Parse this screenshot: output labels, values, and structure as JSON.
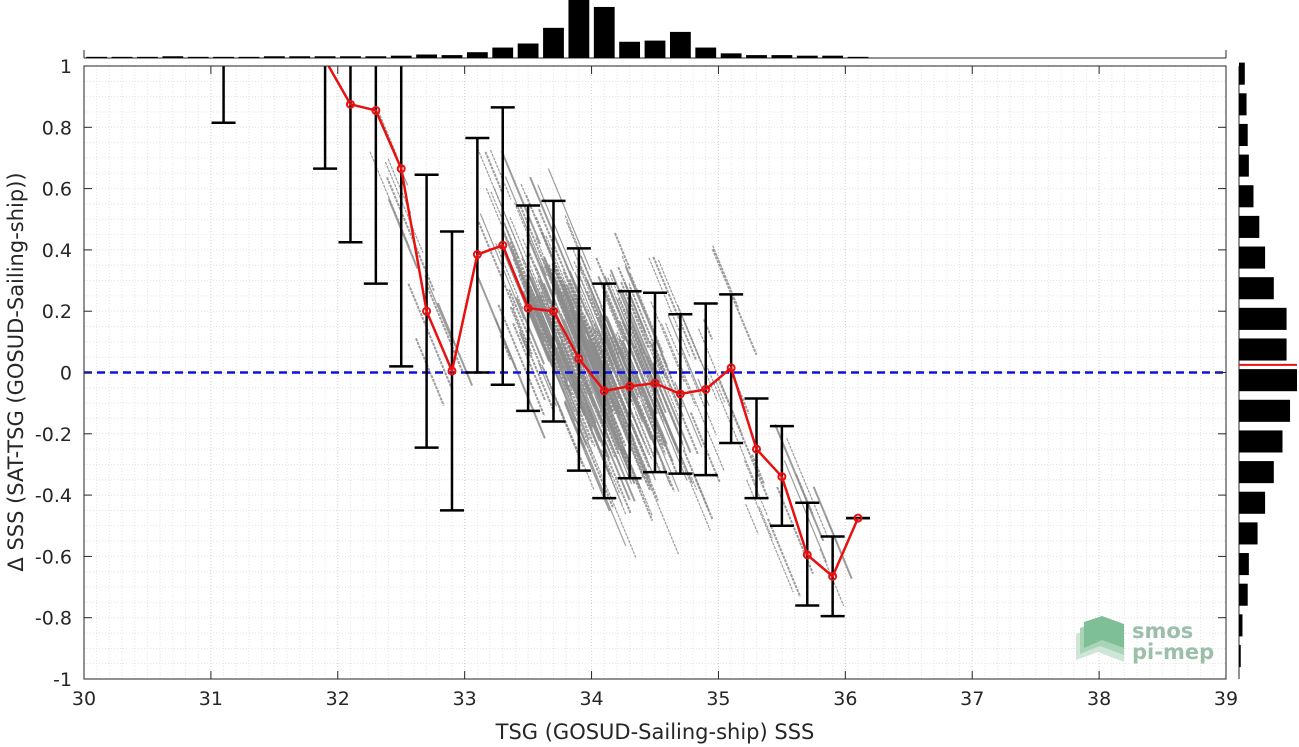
{
  "chart_data": {
    "type": "scatter",
    "title": "",
    "xlabel": "TSG (GOSUD-Sailing-ship) SSS",
    "ylabel": "Δ SSS (SAT-TSG (GOSUD-Sailing-ship))",
    "xlim": [
      30,
      39
    ],
    "ylim": [
      -1,
      1
    ],
    "xticks": [
      30,
      31,
      32,
      33,
      34,
      35,
      36,
      37,
      38,
      39
    ],
    "yticks": [
      -1,
      -0.8,
      -0.6,
      -0.4,
      -0.2,
      0,
      0.2,
      0.4,
      0.6,
      0.8,
      1
    ],
    "xtick_labels": [
      "30",
      "31",
      "32",
      "33",
      "34",
      "35",
      "36",
      "37",
      "38",
      "39"
    ],
    "ytick_labels": [
      "-1",
      "-0.8",
      "-0.6",
      "-0.4",
      "-0.2",
      "0",
      "0.2",
      "0.4",
      "0.6",
      "0.8",
      "1"
    ],
    "grid": "minor dotted",
    "reference_line": {
      "y": 0,
      "style": "dashed",
      "color": "#1010e0"
    },
    "binned_mean": {
      "color": "#e81010",
      "x": [
        31.9,
        32.1,
        32.3,
        32.5,
        32.7,
        32.9,
        33.1,
        33.3,
        33.5,
        33.7,
        33.9,
        34.1,
        34.3,
        34.5,
        34.7,
        34.9,
        35.1,
        35.3,
        35.5,
        35.7,
        35.9,
        36.1
      ],
      "y": [
        1.02,
        0.875,
        0.855,
        0.665,
        0.2,
        0.005,
        0.385,
        0.415,
        0.21,
        0.2,
        0.045,
        -0.06,
        -0.045,
        -0.035,
        -0.07,
        -0.055,
        0.015,
        -0.25,
        -0.34,
        -0.595,
        -0.665,
        -0.475
      ]
    },
    "error_bars": {
      "color": "#000000",
      "x": [
        31.1,
        31.9,
        32.1,
        32.3,
        32.5,
        32.7,
        32.9,
        33.1,
        33.3,
        33.5,
        33.7,
        33.9,
        34.1,
        34.3,
        34.5,
        34.7,
        34.9,
        35.1,
        35.3,
        35.5,
        35.7,
        35.9,
        36.1
      ],
      "low": [
        0.815,
        0.665,
        0.425,
        0.29,
        0.02,
        -0.245,
        -0.45,
        0.0,
        -0.04,
        -0.125,
        -0.16,
        -0.32,
        -0.41,
        -0.345,
        -0.325,
        -0.33,
        -0.335,
        -0.23,
        -0.41,
        -0.5,
        -0.76,
        -0.795,
        -0.475
      ],
      "high": [
        1.0,
        1.0,
        1.0,
        1.0,
        1.0,
        0.645,
        0.46,
        0.765,
        0.865,
        0.545,
        0.56,
        0.405,
        0.29,
        0.265,
        0.26,
        0.19,
        0.225,
        0.255,
        -0.085,
        -0.175,
        -0.425,
        -0.535,
        -0.475
      ]
    },
    "scatter_color": "#8c8c8c",
    "histogram_x": {
      "bins": [
        30.1,
        30.3,
        30.5,
        30.7,
        30.9,
        31.1,
        31.3,
        31.5,
        31.7,
        31.9,
        32.1,
        32.3,
        32.5,
        32.7,
        32.9,
        33.1,
        33.3,
        33.5,
        33.7,
        33.9,
        34.1,
        34.3,
        34.5,
        34.7,
        34.9,
        35.1,
        35.3,
        35.5,
        35.7,
        35.9,
        36.1
      ],
      "counts": [
        0.02,
        0.02,
        0.02,
        0.03,
        0.02,
        0.02,
        0.02,
        0.03,
        0.03,
        0.03,
        0.03,
        0.03,
        0.04,
        0.06,
        0.05,
        0.1,
        0.18,
        0.25,
        0.52,
        1.0,
        0.88,
        0.28,
        0.3,
        0.45,
        0.18,
        0.08,
        0.05,
        0.05,
        0.04,
        0.04,
        0.02
      ]
    },
    "histogram_y": {
      "bins": [
        0.975,
        0.875,
        0.775,
        0.675,
        0.575,
        0.475,
        0.375,
        0.275,
        0.175,
        0.075,
        -0.025,
        -0.125,
        -0.225,
        -0.325,
        -0.425,
        -0.525,
        -0.625,
        -0.725,
        -0.825,
        -0.925
      ],
      "counts": [
        0.1,
        0.13,
        0.15,
        0.17,
        0.25,
        0.35,
        0.45,
        0.6,
        0.82,
        0.82,
        1.0,
        0.88,
        0.75,
        0.6,
        0.45,
        0.32,
        0.17,
        0.15,
        0.06,
        0.03
      ]
    },
    "histogram_y_mean": {
      "value": 0.025,
      "color": "#e81010"
    }
  },
  "logo": {
    "line1": "smos",
    "line2": "pi-mep"
  }
}
